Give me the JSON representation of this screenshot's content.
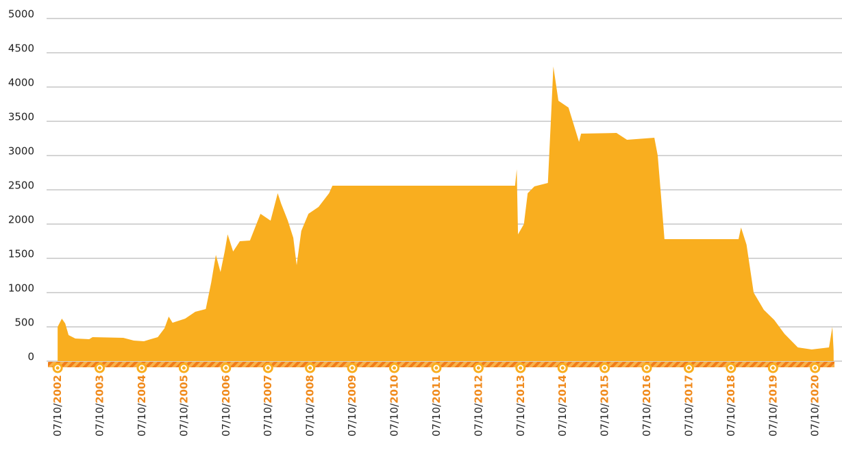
{
  "chart_data": {
    "type": "area",
    "color": "#f9ae1f",
    "x": [
      2002.52,
      2002.62,
      2002.7,
      2002.78,
      2002.94,
      2003.27,
      2003.35,
      2004.08,
      2004.33,
      2004.57,
      2004.73,
      2004.9,
      2005.06,
      2005.16,
      2005.25,
      2005.55,
      2005.79,
      2006.04,
      2006.17,
      2006.28,
      2006.39,
      2006.49,
      2006.56,
      2006.69,
      2006.85,
      2007.09,
      2007.34,
      2007.58,
      2007.75,
      2007.83,
      2007.99,
      2008.12,
      2008.2,
      2008.31,
      2008.48,
      2008.72,
      2008.97,
      2009.05,
      2013.39,
      2013.43,
      2013.46,
      2013.6,
      2013.69,
      2013.85,
      2014.17,
      2014.24,
      2014.3,
      2014.42,
      2014.66,
      2014.91,
      2014.96,
      2015.8,
      2016.05,
      2016.7,
      2016.78,
      2016.86,
      2016.94,
      2018.7,
      2018.76,
      2018.89,
      2019.06,
      2019.3,
      2019.55,
      2019.79,
      2020.11,
      2020.44,
      2020.85,
      2020.93,
      2020.96
    ],
    "values": [
      500,
      620,
      550,
      380,
      330,
      320,
      350,
      340,
      300,
      290,
      320,
      350,
      480,
      650,
      560,
      620,
      720,
      760,
      1150,
      1550,
      1300,
      1600,
      1850,
      1600,
      1750,
      1760,
      2150,
      2050,
      2450,
      2300,
      2050,
      1800,
      1400,
      1900,
      2150,
      2250,
      2450,
      2560,
      2560,
      2800,
      1850,
      2000,
      2450,
      2550,
      2600,
      3500,
      4300,
      3800,
      3700,
      3200,
      3320,
      3330,
      3230,
      3260,
      3000,
      2400,
      1780,
      1780,
      1950,
      1700,
      1000,
      750,
      600,
      400,
      200,
      170,
      200,
      500,
      150
    ],
    "xlim": [
      2002.29,
      2020.98
    ],
    "xticks": [
      {
        "value": 2002.52,
        "label": "07/10/2002"
      },
      {
        "value": 2003.52,
        "label": "07/10/2003"
      },
      {
        "value": 2004.52,
        "label": "07/10/2004"
      },
      {
        "value": 2005.52,
        "label": "07/10/2005"
      },
      {
        "value": 2006.52,
        "label": "07/10/2006"
      },
      {
        "value": 2007.52,
        "label": "07/10/2007"
      },
      {
        "value": 2008.52,
        "label": "07/10/2008"
      },
      {
        "value": 2009.52,
        "label": "07/10/2009"
      },
      {
        "value": 2010.52,
        "label": "07/10/2010"
      },
      {
        "value": 2011.52,
        "label": "07/10/2011"
      },
      {
        "value": 2012.52,
        "label": "07/10/2012"
      },
      {
        "value": 2013.52,
        "label": "07/10/2013"
      },
      {
        "value": 2014.52,
        "label": "07/10/2014"
      },
      {
        "value": 2015.52,
        "label": "07/10/2015"
      },
      {
        "value": 2016.52,
        "label": "07/10/2016"
      },
      {
        "value": 2017.52,
        "label": "07/10/2017"
      },
      {
        "value": 2018.52,
        "label": "07/10/2018"
      },
      {
        "value": 2019.52,
        "label": "07/10/2019"
      },
      {
        "value": 2020.52,
        "label": "07/10/2020"
      }
    ],
    "ylim": [
      0,
      5000
    ],
    "yticks": [
      0,
      500,
      1000,
      1500,
      2000,
      2500,
      3000,
      3500,
      4000,
      4500,
      5000
    ],
    "grid": true
  }
}
